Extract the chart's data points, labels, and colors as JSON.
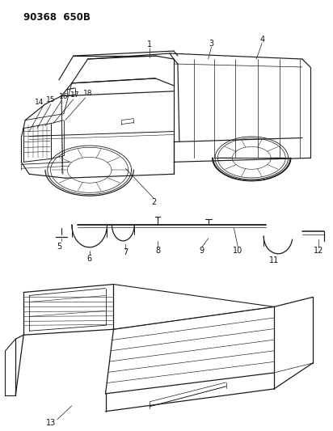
{
  "title_code": "90368 650B",
  "background_color": "#ffffff",
  "line_color": "#1a1a1a",
  "text_color": "#111111",
  "fig_width": 4.12,
  "fig_height": 5.33,
  "dpi": 100
}
